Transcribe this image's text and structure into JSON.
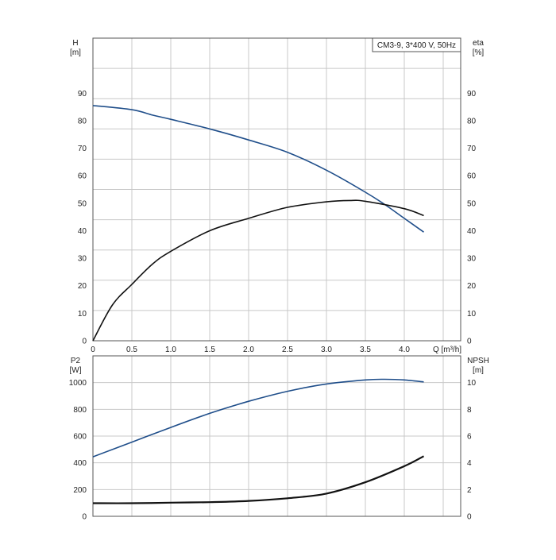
{
  "chart_data": [
    {
      "type": "line",
      "legend": "CM3-9, 3*400 V, 50Hz",
      "legend_placement": "top-right",
      "grid": true,
      "x_axis": {
        "label": "Q [m³/h]",
        "range": [
          0,
          4.7
        ],
        "ticks": [
          "0",
          "0.5",
          "1.0",
          "1.5",
          "2.0",
          "2.5",
          "3.0",
          "3.5",
          "4.0"
        ]
      },
      "y_left": {
        "label_top": "H",
        "label_unit": "[m]",
        "range": [
          0,
          110
        ],
        "ticks": [
          "0",
          "10",
          "20",
          "30",
          "40",
          "50",
          "60",
          "70",
          "80",
          "90"
        ]
      },
      "y_right": {
        "label_top": "eta",
        "label_unit": "[%]",
        "range": [
          0,
          110
        ],
        "ticks": [
          "0",
          "10",
          "20",
          "30",
          "40",
          "50",
          "60",
          "70",
          "80",
          "90"
        ]
      },
      "series": [
        {
          "axis": "left",
          "color": "#1f4e8a",
          "x": [
            0,
            0.5,
            0.77,
            1.0,
            1.5,
            2.0,
            2.5,
            3.0,
            3.5,
            3.75,
            4.0,
            4.25
          ],
          "y": [
            85.5,
            84,
            82,
            80.5,
            77,
            73,
            68.5,
            62,
            54,
            49.5,
            44.5,
            39.5
          ]
        },
        {
          "axis": "right",
          "color": "#111111",
          "x": [
            0,
            0.25,
            0.5,
            0.77,
            1.0,
            1.5,
            2.0,
            2.5,
            3.0,
            3.3,
            3.5,
            4.0,
            4.25
          ],
          "y": [
            0,
            13,
            20.5,
            28,
            32.5,
            40,
            44.5,
            48.5,
            50.5,
            51,
            50.7,
            48,
            45.5
          ]
        }
      ]
    },
    {
      "type": "line",
      "grid": true,
      "x_axis": {
        "range": [
          0,
          4.7
        ]
      },
      "y_left": {
        "label_top": "P2",
        "label_unit": "[W]",
        "range": [
          0,
          1200
        ],
        "ticks": [
          "0",
          "200",
          "400",
          "600",
          "800",
          "1000"
        ]
      },
      "y_right": {
        "label_top": "NPSH",
        "label_unit": "[m]",
        "range": [
          0,
          12
        ],
        "ticks": [
          "0",
          "2",
          "4",
          "6",
          "8",
          "10"
        ]
      },
      "series": [
        {
          "axis": "left",
          "color": "#1f4e8a",
          "x": [
            0,
            0.5,
            1.0,
            1.5,
            2.0,
            2.5,
            3.0,
            3.5,
            3.75,
            4.0,
            4.25
          ],
          "y": [
            445,
            555,
            665,
            770,
            860,
            935,
            990,
            1020,
            1025,
            1020,
            1005
          ]
        },
        {
          "axis": "right",
          "color": "#111111",
          "x": [
            0,
            0.5,
            1.0,
            1.5,
            2.0,
            2.5,
            3.0,
            3.5,
            4.0,
            4.25
          ],
          "y": [
            0.98,
            0.98,
            1.02,
            1.06,
            1.15,
            1.35,
            1.7,
            2.55,
            3.75,
            4.5
          ]
        }
      ]
    }
  ]
}
